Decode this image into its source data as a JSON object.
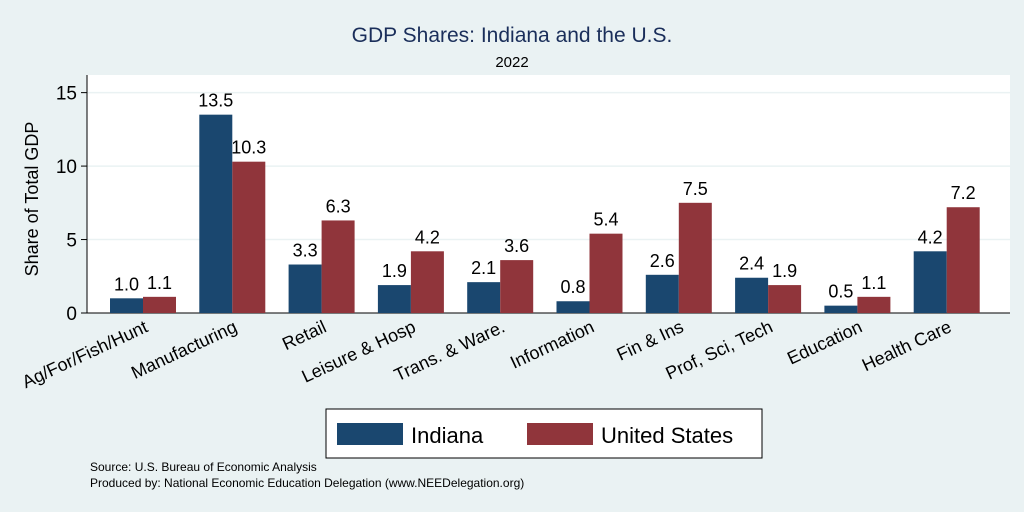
{
  "chart_data": {
    "type": "bar",
    "title": "GDP Shares: Indiana and the U.S.",
    "subtitle": "2022",
    "xlabel": "",
    "ylabel": "Share of Total GDP",
    "ylim": [
      0,
      16.2
    ],
    "yticks": [
      0,
      5,
      10,
      15
    ],
    "grid": true,
    "legend_placement": "bottom",
    "categories": [
      "Ag/For/Fish/Hunt",
      "Manufacturing",
      "Retail",
      "Leisure & Hosp",
      "Trans. & Ware.",
      "Information",
      "Fin & Ins",
      "Prof, Sci, Tech",
      "Education",
      "Health Care"
    ],
    "series": [
      {
        "name": "Indiana",
        "color": "#1a476f",
        "values": [
          1.0,
          13.5,
          3.3,
          1.9,
          2.1,
          0.8,
          2.6,
          2.4,
          0.5,
          4.2
        ]
      },
      {
        "name": "United States",
        "color": "#90353b",
        "values": [
          1.1,
          10.3,
          6.3,
          4.2,
          3.6,
          5.4,
          7.5,
          1.9,
          1.1,
          7.2
        ]
      }
    ]
  },
  "notes": {
    "source": "Source: U.S. Bureau of Economic Analysis",
    "produced": "Produced by: National Economic Education Delegation (www.NEEDelegation.org)"
  }
}
